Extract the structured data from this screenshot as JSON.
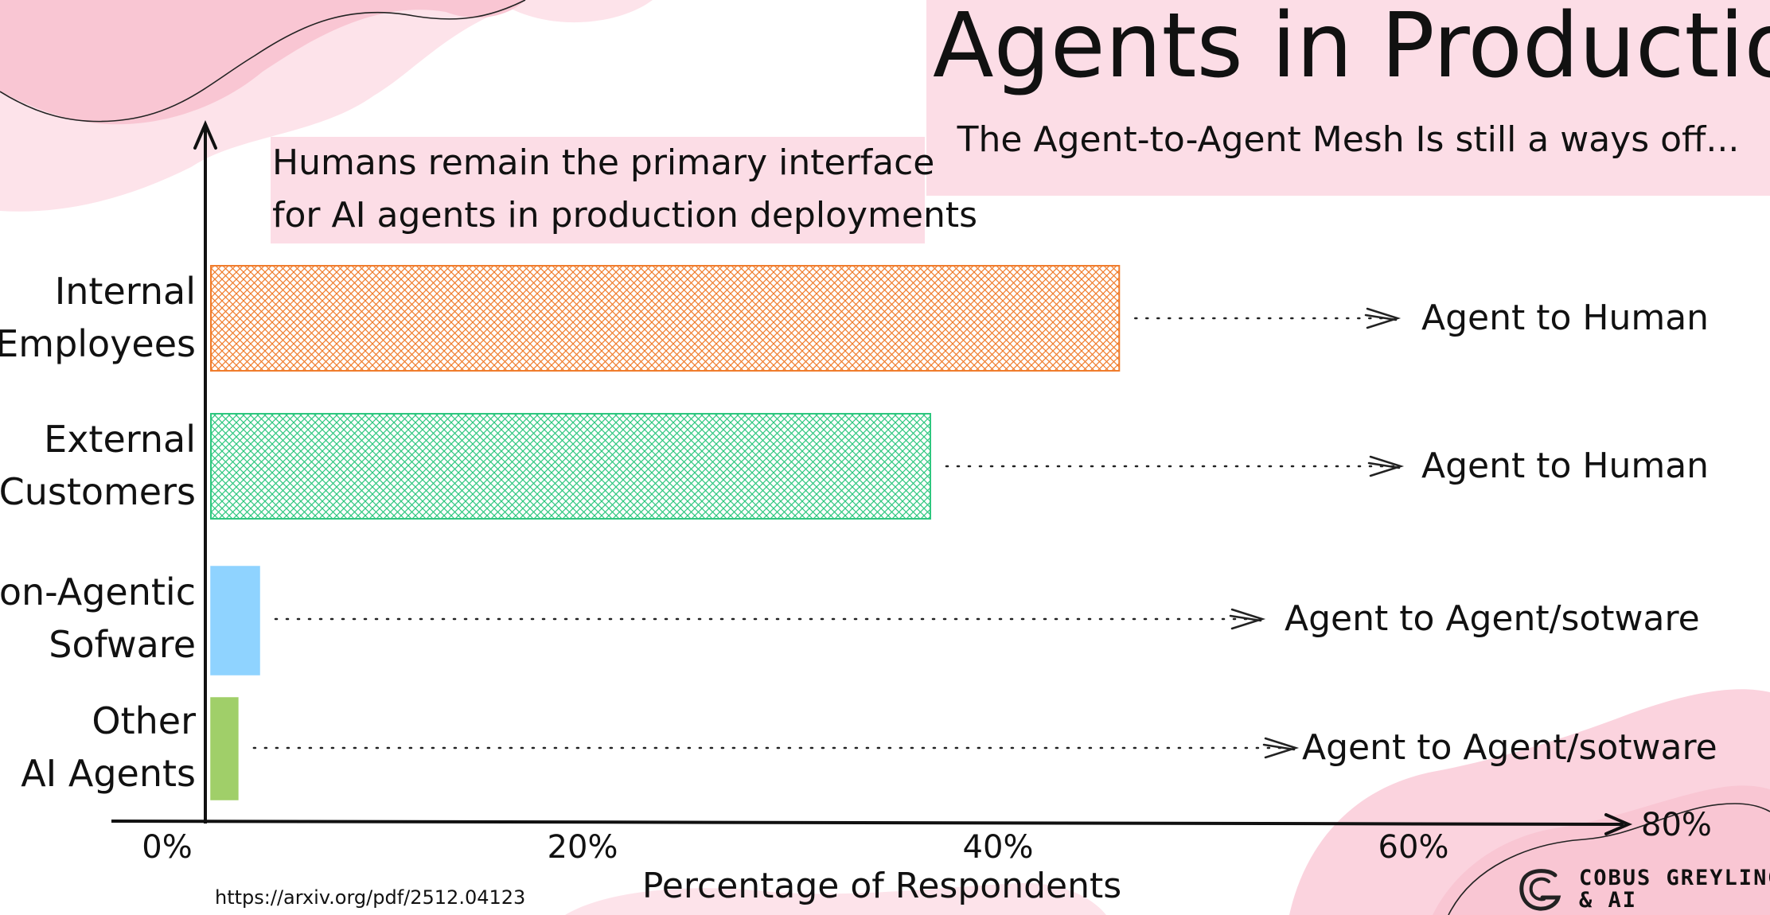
{
  "header": {
    "title": "Agents in Production",
    "subtitle": "The Agent-to-Agent Mesh Is still a ways off..."
  },
  "callout": {
    "line1": "Humans remain the primary interface",
    "line2": "for AI agents in production deployments"
  },
  "source": "https://arxiv.org/pdf/2512.04123",
  "brand": {
    "line1": "COBUS GREYLING",
    "line2": "& AI",
    "logo_icon": "c-logo-icon"
  },
  "chart_data": {
    "type": "bar",
    "orientation": "horizontal",
    "categories": [
      [
        "Internal",
        "Employees"
      ],
      [
        "External",
        "Customers"
      ],
      [
        "Non-Agentic",
        "Sofware"
      ],
      [
        "Other",
        "AI Agents"
      ]
    ],
    "values": [
      50.5,
      40,
      2.7,
      1.5
    ],
    "bar_colors": [
      "#f07c2c",
      "#2ec77f",
      "#8fd3ff",
      "#a0cf69"
    ],
    "bar_styles": [
      "crosshatch",
      "crosshatch",
      "solid",
      "solid"
    ],
    "annotations": [
      "Agent to Human",
      "Agent to Human",
      "Agent to Agent/sotware",
      "Agent to Agent/sotware"
    ],
    "xlabel": "Percentage of Respondents",
    "ylabel": "",
    "xlim": [
      0,
      80
    ],
    "xticks": [
      0,
      20,
      40,
      60,
      80
    ],
    "xtick_labels": [
      "0%",
      "20%",
      "40%",
      "60%",
      "80%"
    ],
    "grid": false,
    "legend": "none"
  }
}
